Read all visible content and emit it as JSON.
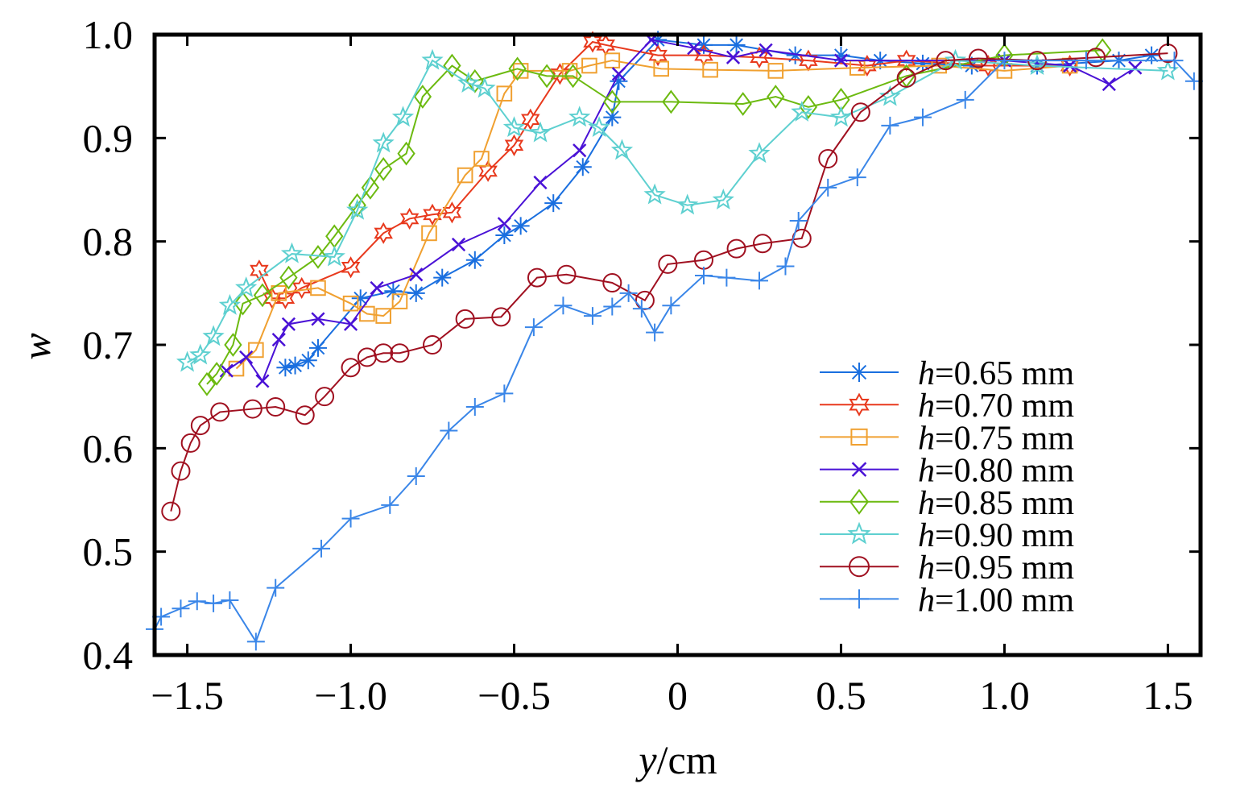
{
  "chart_data": {
    "type": "line",
    "title": "",
    "xlabel_var": "y",
    "xlabel_unit": "/cm",
    "ylabel": "w",
    "xlim": [
      -1.6,
      1.6
    ],
    "ylim": [
      0.4,
      1.0
    ],
    "xticks": [
      -1.5,
      -1.0,
      -0.5,
      0,
      0.5,
      1.0,
      1.5
    ],
    "xtick_labels": [
      "−1.5",
      "−1.0",
      "−0.5",
      "0",
      "0.5",
      "1.0",
      "1.5"
    ],
    "yticks": [
      0.4,
      0.5,
      0.6,
      0.7,
      0.8,
      0.9,
      1.0
    ],
    "ytick_labels": [
      "0.4",
      "0.5",
      "0.6",
      "0.7",
      "0.8",
      "0.9",
      "1.0"
    ],
    "grid": false,
    "legend_position": "bottom-right",
    "series": [
      {
        "name": "h=0.65 mm",
        "label_var": "h",
        "label_rest": "=0.65 mm",
        "color": "#1a6fdf",
        "marker": "asterisk",
        "x": [
          -1.2,
          -1.17,
          -1.13,
          -1.1,
          -0.97,
          -0.87,
          -0.8,
          -0.72,
          -0.62,
          -0.53,
          -0.48,
          -0.38,
          -0.29,
          -0.2,
          -0.18,
          -0.06,
          0.08,
          0.18,
          0.36,
          0.5,
          0.62,
          0.75,
          0.9,
          1.1,
          1.35,
          1.45
        ],
        "y": [
          0.678,
          0.68,
          0.685,
          0.697,
          0.745,
          0.752,
          0.75,
          0.765,
          0.782,
          0.806,
          0.815,
          0.837,
          0.872,
          0.92,
          0.955,
          0.995,
          0.99,
          0.99,
          0.98,
          0.98,
          0.975,
          0.972,
          0.97,
          0.97,
          0.975,
          0.98
        ]
      },
      {
        "name": "h=0.70 mm",
        "label_var": "h",
        "label_rest": "=0.70 mm",
        "color": "#e8391d",
        "marker": "hexagram",
        "x": [
          -1.28,
          -1.24,
          -1.2,
          -1.15,
          -1.0,
          -0.9,
          -0.82,
          -0.75,
          -0.69,
          -0.58,
          -0.5,
          -0.45,
          -0.36,
          -0.26,
          -0.22,
          -0.06,
          0.08,
          0.25,
          0.4,
          0.58,
          0.7,
          0.95,
          1.2
        ],
        "y": [
          0.772,
          0.745,
          0.745,
          0.755,
          0.775,
          0.808,
          0.822,
          0.826,
          0.828,
          0.868,
          0.893,
          0.918,
          0.962,
          0.993,
          0.99,
          0.98,
          0.98,
          0.978,
          0.975,
          0.97,
          0.975,
          0.97,
          0.97
        ]
      },
      {
        "name": "h=0.75 mm",
        "label_var": "h",
        "label_rest": "=0.75 mm",
        "color": "#f0a030",
        "marker": "square",
        "x": [
          -1.35,
          -1.29,
          -1.22,
          -1.1,
          -1.0,
          -0.95,
          -0.9,
          -0.85,
          -0.76,
          -0.65,
          -0.6,
          -0.53,
          -0.48,
          -0.33,
          -0.27,
          -0.2,
          -0.05,
          0.1,
          0.3,
          0.55,
          0.8,
          1.0,
          1.2
        ],
        "y": [
          0.677,
          0.695,
          0.75,
          0.755,
          0.74,
          0.73,
          0.728,
          0.742,
          0.808,
          0.864,
          0.88,
          0.943,
          0.965,
          0.965,
          0.97,
          0.975,
          0.967,
          0.966,
          0.965,
          0.968,
          0.97,
          0.965,
          0.97
        ]
      },
      {
        "name": "h=0.80 mm",
        "label_var": "h",
        "label_rest": "=0.80 mm",
        "color": "#4a12d6",
        "marker": "x",
        "x": [
          -1.38,
          -1.32,
          -1.27,
          -1.22,
          -1.19,
          -1.1,
          -1.0,
          -0.92,
          -0.8,
          -0.67,
          -0.53,
          -0.42,
          -0.3,
          -0.18,
          -0.08,
          0.05,
          0.17,
          0.27,
          0.5,
          1.0,
          1.2,
          1.32,
          1.4
        ],
        "y": [
          0.675,
          0.688,
          0.665,
          0.705,
          0.72,
          0.725,
          0.72,
          0.755,
          0.768,
          0.797,
          0.817,
          0.857,
          0.888,
          0.962,
          0.995,
          0.987,
          0.978,
          0.985,
          0.975,
          0.975,
          0.97,
          0.952,
          0.968
        ]
      },
      {
        "name": "h=0.85 mm",
        "label_var": "h",
        "label_rest": "=0.85 mm",
        "color": "#6cba10",
        "marker": "diamond",
        "x": [
          -1.44,
          -1.41,
          -1.36,
          -1.33,
          -1.27,
          -1.19,
          -1.1,
          -1.05,
          -0.98,
          -0.94,
          -0.9,
          -0.83,
          -0.78,
          -0.69,
          -0.62,
          -0.49,
          -0.4,
          -0.32,
          -0.2,
          -0.02,
          0.2,
          0.3,
          0.4,
          0.5,
          0.7,
          1.0,
          1.3
        ],
        "y": [
          0.662,
          0.672,
          0.7,
          0.74,
          0.748,
          0.765,
          0.785,
          0.805,
          0.835,
          0.852,
          0.87,
          0.885,
          0.94,
          0.97,
          0.955,
          0.967,
          0.96,
          0.96,
          0.935,
          0.935,
          0.933,
          0.94,
          0.93,
          0.937,
          0.96,
          0.98,
          0.985
        ]
      },
      {
        "name": "h=0.90 mm",
        "label_var": "h",
        "label_rest": "=0.90 mm",
        "color": "#5ed0d0",
        "marker": "star",
        "x": [
          -1.5,
          -1.46,
          -1.42,
          -1.37,
          -1.32,
          -1.18,
          -1.05,
          -0.98,
          -0.9,
          -0.84,
          -0.75,
          -0.64,
          -0.59,
          -0.5,
          -0.42,
          -0.3,
          -0.24,
          -0.17,
          -0.07,
          0.03,
          0.14,
          0.25,
          0.38,
          0.5,
          0.65,
          0.85,
          1.1,
          1.5
        ],
        "y": [
          0.683,
          0.69,
          0.708,
          0.738,
          0.755,
          0.788,
          0.785,
          0.83,
          0.895,
          0.92,
          0.975,
          0.953,
          0.948,
          0.91,
          0.905,
          0.92,
          0.91,
          0.888,
          0.845,
          0.835,
          0.84,
          0.885,
          0.925,
          0.92,
          0.94,
          0.975,
          0.97,
          0.965
        ]
      },
      {
        "name": "h=0.95 mm",
        "label_var": "h",
        "label_rest": "=0.95 mm",
        "color": "#a01020",
        "marker": "circle",
        "x": [
          -1.55,
          -1.52,
          -1.49,
          -1.46,
          -1.4,
          -1.3,
          -1.23,
          -1.14,
          -1.08,
          -1.0,
          -0.95,
          -0.9,
          -0.85,
          -0.75,
          -0.65,
          -0.54,
          -0.43,
          -0.34,
          -0.2,
          -0.1,
          -0.03,
          0.08,
          0.18,
          0.26,
          0.38,
          0.46,
          0.56,
          0.7,
          0.82,
          0.92,
          1.1,
          1.28,
          1.5
        ],
        "y": [
          0.539,
          0.578,
          0.605,
          0.622,
          0.635,
          0.638,
          0.64,
          0.632,
          0.65,
          0.678,
          0.688,
          0.692,
          0.692,
          0.7,
          0.725,
          0.727,
          0.765,
          0.768,
          0.76,
          0.743,
          0.778,
          0.782,
          0.793,
          0.798,
          0.803,
          0.88,
          0.925,
          0.958,
          0.975,
          0.977,
          0.975,
          0.978,
          0.982
        ]
      },
      {
        "name": "h=1.00 mm",
        "label_var": "h",
        "label_rest": "=1.00 mm",
        "color": "#3a86e8",
        "marker": "plus",
        "x": [
          -1.6,
          -1.58,
          -1.52,
          -1.47,
          -1.42,
          -1.37,
          -1.29,
          -1.23,
          -1.09,
          -1.0,
          -0.88,
          -0.8,
          -0.7,
          -0.62,
          -0.53,
          -0.44,
          -0.35,
          -0.26,
          -0.2,
          -0.15,
          -0.11,
          -0.07,
          -0.02,
          0.08,
          0.15,
          0.25,
          0.33,
          0.37,
          0.46,
          0.55,
          0.65,
          0.75,
          0.88,
          1.0,
          1.25,
          1.52,
          1.58
        ],
        "y": [
          0.425,
          0.437,
          0.445,
          0.452,
          0.45,
          0.453,
          0.413,
          0.465,
          0.503,
          0.532,
          0.545,
          0.573,
          0.617,
          0.64,
          0.653,
          0.717,
          0.738,
          0.728,
          0.737,
          0.75,
          0.735,
          0.712,
          0.738,
          0.767,
          0.765,
          0.762,
          0.776,
          0.82,
          0.852,
          0.862,
          0.912,
          0.92,
          0.937,
          0.975,
          0.975,
          0.975,
          0.955
        ]
      }
    ]
  }
}
